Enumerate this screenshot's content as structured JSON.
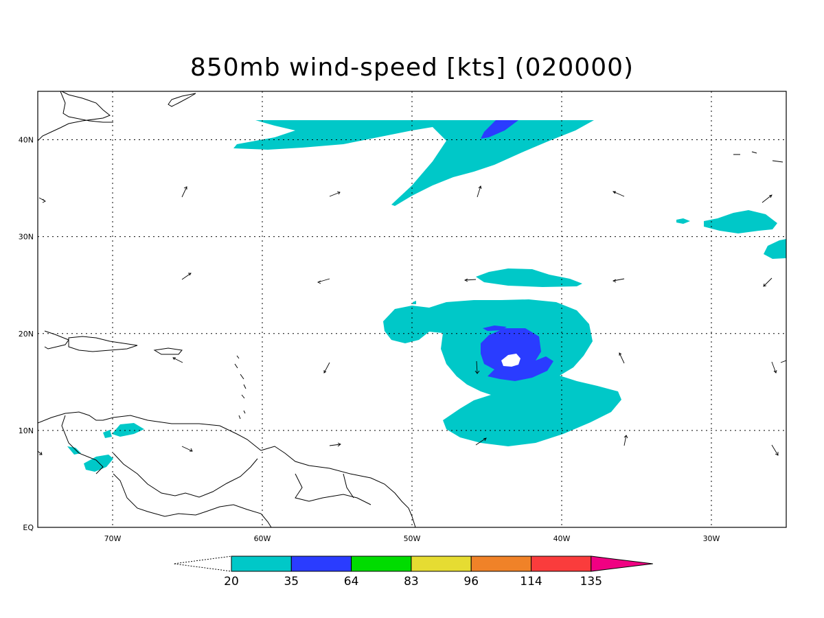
{
  "title": "850mb wind-speed [kts] (020000)",
  "map": {
    "lon_range": [
      -75,
      -25
    ],
    "lat_range": [
      0,
      45
    ],
    "grid": "dotted",
    "x_ticks": [
      {
        "lon": -70,
        "label": "70W"
      },
      {
        "lon": -60,
        "label": "60W"
      },
      {
        "lon": -50,
        "label": "50W"
      },
      {
        "lon": -40,
        "label": "40W"
      },
      {
        "lon": -30,
        "label": "30W"
      }
    ],
    "y_ticks": [
      {
        "lat": 0,
        "label": "EQ"
      },
      {
        "lat": 10,
        "label": "10N"
      },
      {
        "lat": 20,
        "label": "20N"
      },
      {
        "lat": 30,
        "label": "30N"
      },
      {
        "lat": 40,
        "label": "40N"
      }
    ],
    "fill_colors": {
      "20-35": "#00c8c8",
      "35-64": "#2a3cff"
    }
  },
  "colorbar": {
    "labels": [
      "20",
      "35",
      "64",
      "83",
      "96",
      "114",
      "135"
    ],
    "colors": [
      "#00c8c8",
      "#2a3cff",
      "#00dc00",
      "#e6dc32",
      "#f08228",
      "#fa3c3c",
      "#f00082"
    ]
  }
}
